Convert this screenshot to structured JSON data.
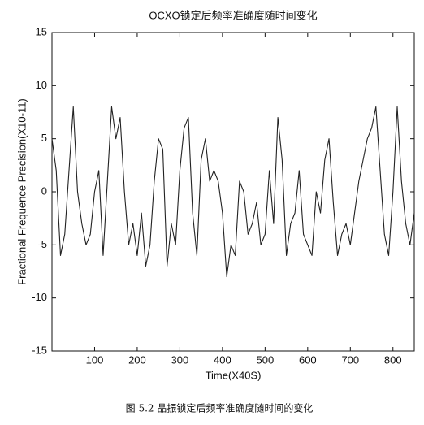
{
  "chart_data": {
    "type": "line",
    "title": "OCXO锁定后频率准确度随时间变化",
    "xlabel": "Time(X40S)",
    "ylabel": "Fractional Frequence Precision(X10-11)",
    "caption": "图 5.2 晶振锁定后频率准确度随时间的变化",
    "x": [
      0,
      10,
      20,
      30,
      40,
      50,
      60,
      70,
      80,
      90,
      100,
      110,
      120,
      130,
      140,
      150,
      160,
      170,
      180,
      190,
      200,
      210,
      220,
      230,
      240,
      250,
      260,
      270,
      280,
      290,
      300,
      310,
      320,
      330,
      340,
      350,
      360,
      370,
      380,
      390,
      400,
      410,
      420,
      430,
      440,
      450,
      460,
      470,
      480,
      490,
      500,
      510,
      520,
      530,
      540,
      550,
      560,
      570,
      580,
      590,
      600,
      610,
      620,
      630,
      640,
      650,
      660,
      670,
      680,
      690,
      700,
      710,
      720,
      730,
      740,
      750,
      760,
      770,
      780,
      790,
      800,
      810,
      820,
      830,
      840,
      850
    ],
    "series": [
      {
        "name": "precision",
        "color": "#222222",
        "values": [
          5,
          2,
          -6,
          -4,
          2,
          8,
          0,
          -3,
          -5,
          -4,
          0,
          2,
          -6,
          1,
          8,
          5,
          7,
          0,
          -5,
          -3,
          -6,
          -2,
          -7,
          -5,
          1,
          5,
          4,
          -7,
          -3,
          -5,
          2,
          6,
          7,
          -2,
          -6,
          3,
          5,
          1,
          2,
          1,
          -2,
          -8,
          -5,
          -6,
          1,
          0,
          -4,
          -3,
          -1,
          -5,
          -4,
          2,
          -3,
          7,
          3,
          -6,
          -3,
          -2,
          2,
          -4,
          -5,
          -6,
          0,
          -2,
          3,
          5,
          -1,
          -6,
          -4,
          -3,
          -5,
          -2,
          1,
          3,
          5,
          6,
          8,
          2,
          -4,
          -6,
          0,
          8,
          1,
          -3,
          -5,
          -2
        ]
      }
    ],
    "xlim": [
      0,
      850
    ],
    "ylim": [
      -15,
      15
    ],
    "xticks": [
      100,
      200,
      300,
      400,
      500,
      600,
      700,
      800
    ],
    "yticks": [
      -15,
      -10,
      -5,
      0,
      5,
      10,
      15
    ]
  }
}
